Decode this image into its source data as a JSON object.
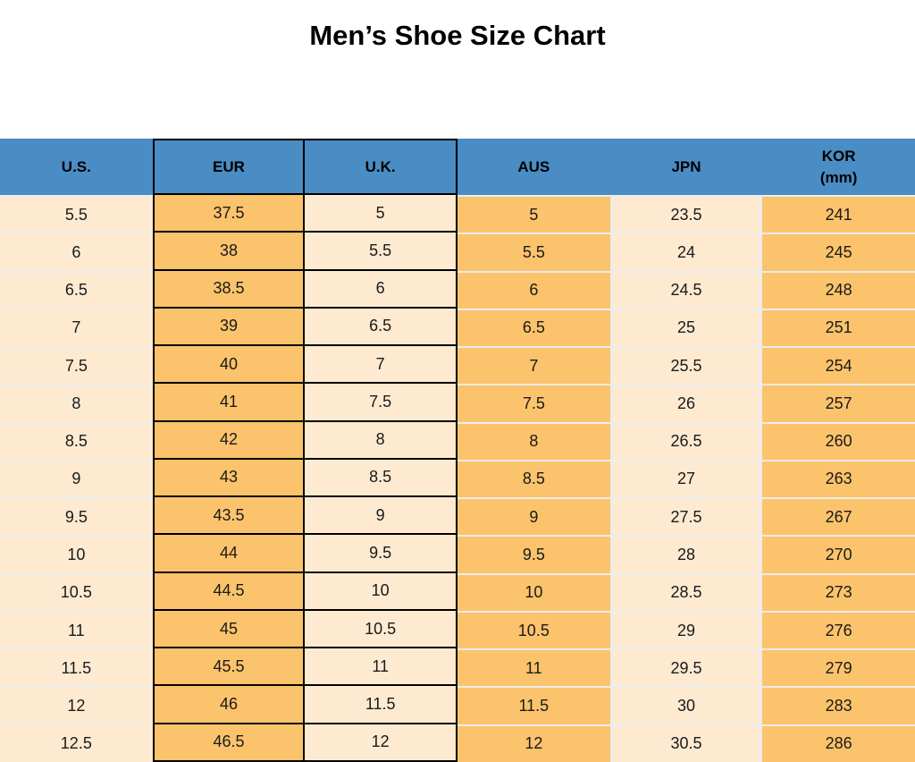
{
  "title": "Men’s Shoe Size Chart",
  "chart_data": {
    "type": "table",
    "title": "Men’s Shoe Size Chart",
    "columns": [
      {
        "label": "U.S.",
        "sublabel": ""
      },
      {
        "label": "EUR",
        "sublabel": ""
      },
      {
        "label": "U.K.",
        "sublabel": ""
      },
      {
        "label": "AUS",
        "sublabel": ""
      },
      {
        "label": "JPN",
        "sublabel": ""
      },
      {
        "label": "KOR",
        "sublabel": "(mm)"
      }
    ],
    "rows": [
      [
        "5.5",
        "37.5",
        "5",
        "5",
        "23.5",
        "241"
      ],
      [
        "6",
        "38",
        "5.5",
        "5.5",
        "24",
        "245"
      ],
      [
        "6.5",
        "38.5",
        "6",
        "6",
        "24.5",
        "248"
      ],
      [
        "7",
        "39",
        "6.5",
        "6.5",
        "25",
        "251"
      ],
      [
        "7.5",
        "40",
        "7",
        "7",
        "25.5",
        "254"
      ],
      [
        "8",
        "41",
        "7.5",
        "7.5",
        "26",
        "257"
      ],
      [
        "8.5",
        "42",
        "8",
        "8",
        "26.5",
        "260"
      ],
      [
        "9",
        "43",
        "8.5",
        "8.5",
        "27",
        "263"
      ],
      [
        "9.5",
        "43.5",
        "9",
        "9",
        "27.5",
        "267"
      ],
      [
        "10",
        "44",
        "9.5",
        "9.5",
        "28",
        "270"
      ],
      [
        "10.5",
        "44.5",
        "10",
        "10",
        "28.5",
        "273"
      ],
      [
        "11",
        "45",
        "10.5",
        "10.5",
        "29",
        "276"
      ],
      [
        "11.5",
        "45.5",
        "11",
        "11",
        "29.5",
        "279"
      ],
      [
        "12",
        "46",
        "11.5",
        "11.5",
        "30",
        "283"
      ],
      [
        "12.5",
        "46.5",
        "12",
        "12",
        "30.5",
        "286"
      ]
    ]
  },
  "colors": {
    "header_bg": "#4A8CC4",
    "orange_cell": "#FBC36B",
    "cream_cell": "#FDEAD1",
    "grid_black": "#000000",
    "separator": "#ECECEC"
  }
}
